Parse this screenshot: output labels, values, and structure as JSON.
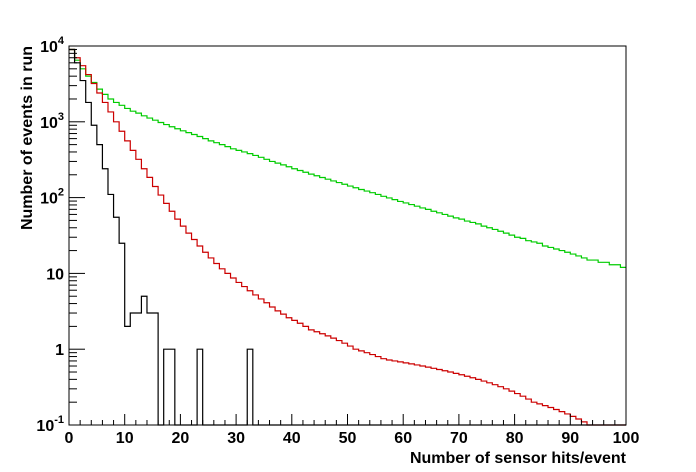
{
  "chart_data": {
    "type": "line",
    "style": "step-histogram",
    "xlabel": "Number of sensor hits/event",
    "ylabel": "Number of events in run",
    "xlim": [
      0,
      100
    ],
    "ylim": [
      0.1,
      10000
    ],
    "yscale": "log",
    "grid": false,
    "legend": "none",
    "x_ticks": [
      "0",
      "10",
      "20",
      "30",
      "40",
      "50",
      "60",
      "70",
      "80",
      "90",
      "100"
    ],
    "y_ticks": [
      {
        "base": "10",
        "exp": "-1"
      },
      {
        "base": "1",
        "exp": ""
      },
      {
        "base": "10",
        "exp": ""
      },
      {
        "base": "10",
        "exp": "2"
      },
      {
        "base": "10",
        "exp": "3"
      },
      {
        "base": "10",
        "exp": "4"
      }
    ],
    "series": [
      {
        "color": "#00cc00",
        "values": [
          9000,
          6500,
          5000,
          4000,
          3300,
          2700,
          2300,
          2000,
          1800,
          1650,
          1500,
          1380,
          1300,
          1200,
          1120,
          1050,
          980,
          920,
          860,
          810,
          760,
          720,
          680,
          640,
          600,
          560,
          530,
          500,
          470,
          440,
          420,
          400,
          380,
          360,
          340,
          320,
          300,
          285,
          270,
          255,
          240,
          228,
          216,
          204,
          194,
          184,
          175,
          166,
          158,
          150,
          142,
          135,
          128,
          122,
          116,
          110,
          104,
          99,
          94,
          89,
          85,
          81,
          77,
          73,
          70,
          66,
          63,
          60,
          57,
          54,
          52,
          49,
          47,
          45,
          42,
          40,
          38,
          36,
          34,
          32,
          30,
          29,
          27,
          26,
          25,
          23,
          22,
          21,
          20,
          19,
          18,
          17,
          16,
          15,
          15,
          14,
          14,
          13,
          13,
          12
        ]
      },
      {
        "color": "#cc0000",
        "values": [
          9000,
          7000,
          5500,
          4200,
          3200,
          2400,
          1800,
          1350,
          1000,
          750,
          560,
          420,
          320,
          240,
          185,
          140,
          108,
          84,
          66,
          52,
          42,
          34,
          28,
          23,
          19,
          16,
          13.5,
          11.5,
          10,
          8.7,
          7.6,
          6.7,
          5.9,
          5.2,
          4.6,
          4.1,
          3.6,
          3.2,
          2.9,
          2.6,
          2.4,
          2.2,
          2.0,
          1.8,
          1.7,
          1.6,
          1.5,
          1.4,
          1.3,
          1.2,
          1.1,
          1.0,
          0.95,
          0.9,
          0.85,
          0.8,
          0.75,
          0.72,
          0.7,
          0.68,
          0.66,
          0.64,
          0.62,
          0.6,
          0.58,
          0.56,
          0.54,
          0.52,
          0.5,
          0.48,
          0.46,
          0.44,
          0.42,
          0.4,
          0.38,
          0.36,
          0.34,
          0.32,
          0.3,
          0.28,
          0.26,
          0.24,
          0.22,
          0.2,
          0.19,
          0.18,
          0.17,
          0.16,
          0.15,
          0.14,
          0.13,
          0.12,
          0.11,
          0.1,
          0.1,
          0.1,
          0.1,
          0.1,
          0.1,
          0.1
        ]
      },
      {
        "color": "#000000",
        "values": [
          9000,
          6000,
          3500,
          1800,
          900,
          500,
          240,
          110,
          55,
          25,
          2,
          3,
          3,
          5,
          3,
          3,
          0.1,
          1,
          1,
          0.1,
          0.1,
          0.1,
          0.1,
          1,
          0.1,
          0.1,
          0.1,
          0.1,
          0.1,
          0.1,
          0.1,
          0.1,
          1,
          0.1,
          0.1,
          0.1,
          0.1,
          0.1,
          0.1,
          0.1,
          0.1,
          0.1,
          0.1,
          0.1,
          0.1,
          0.1,
          0.1,
          0.1,
          0.1,
          0.1,
          0.1,
          0.1,
          0.1,
          0.1,
          0.1,
          0.1,
          0.1,
          0.1,
          0.1,
          0.1,
          0.1,
          0.1,
          0.1,
          0.1,
          0.1,
          0.1,
          0.1,
          0.1,
          0.1,
          0.1,
          0.1,
          0.1,
          0.1,
          0.1,
          0.1,
          0.1,
          0.1,
          0.1,
          0.1,
          0.1,
          0.1,
          0.1,
          0.1,
          0.1,
          0.1,
          0.1,
          0.1,
          0.1,
          0.1,
          0.1,
          0.1,
          0.1,
          0.1,
          0.1,
          0.1,
          0.1,
          0.1,
          0.1,
          0.1,
          0.1
        ]
      }
    ]
  }
}
